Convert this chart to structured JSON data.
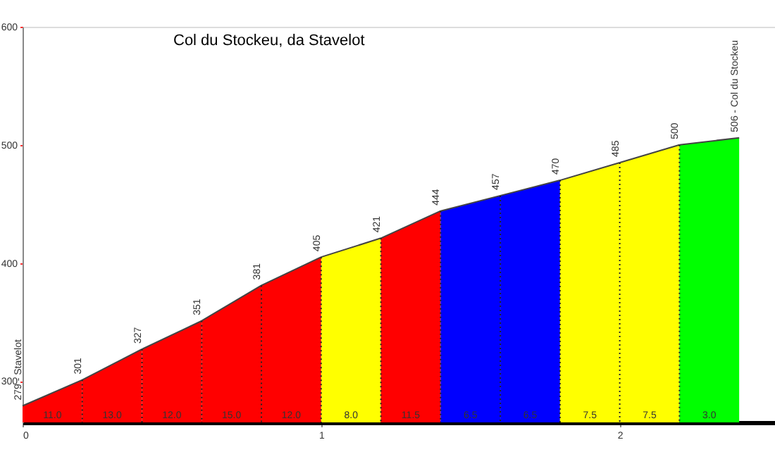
{
  "chart_data": {
    "type": "area",
    "title": "Col du Stockeu, da Stavelot",
    "series": [
      {
        "color": "#ff0000",
        "x": [
          0,
          0.2
        ],
        "values": [
          279,
          301
        ],
        "value_labels": [
          "279 - Stavelot",
          null
        ]
      },
      {
        "color": "#ff0000",
        "x": [
          0.2,
          0.4
        ],
        "values": [
          301,
          327
        ],
        "value_labels": [
          "301",
          null
        ]
      },
      {
        "color": "#ff0000",
        "x": [
          0.4,
          0.6
        ],
        "values": [
          327,
          351
        ],
        "value_labels": [
          "327",
          null
        ]
      },
      {
        "color": "#ff0000",
        "x": [
          0.6,
          0.8
        ],
        "values": [
          351,
          381
        ],
        "value_labels": [
          "351",
          null
        ]
      },
      {
        "color": "#ff0000",
        "x": [
          0.8,
          1.0
        ],
        "values": [
          381,
          405
        ],
        "value_labels": [
          "381",
          null
        ]
      },
      {
        "color": "#ffff00",
        "x": [
          1.0,
          1.2
        ],
        "values": [
          405,
          421
        ],
        "value_labels": [
          "405",
          null
        ]
      },
      {
        "color": "#ff0000",
        "x": [
          1.2,
          1.4
        ],
        "values": [
          421,
          444
        ],
        "value_labels": [
          "421",
          null
        ]
      },
      {
        "color": "#0000ff",
        "x": [
          1.4,
          1.6
        ],
        "values": [
          444,
          457
        ],
        "value_labels": [
          "444",
          null
        ]
      },
      {
        "color": "#0000ff",
        "x": [
          1.6,
          1.8
        ],
        "values": [
          457,
          470
        ],
        "value_labels": [
          "457",
          null
        ]
      },
      {
        "color": "#ffff00",
        "x": [
          1.8,
          2.0
        ],
        "values": [
          470,
          485
        ],
        "value_labels": [
          "470",
          null
        ]
      },
      {
        "color": "#ffff00",
        "x": [
          2.0,
          2.2
        ],
        "values": [
          485,
          500
        ],
        "value_labels": [
          "485",
          null
        ]
      },
      {
        "color": "#00ff00",
        "x": [
          2.2,
          2.4
        ],
        "values": [
          500,
          506
        ],
        "value_labels": [
          "500",
          "506 - Col du Stockeu"
        ]
      }
    ],
    "annotations": [
      "11.0",
      "13.0",
      "12.0",
      "15.0",
      "12.0",
      "8.0",
      "11.5",
      "6.5",
      "6.5",
      "7.5",
      "7.5",
      "3.0"
    ],
    "xlim": [
      0,
      2.52
    ],
    "xticks": [
      0,
      1,
      2
    ],
    "ylim": [
      265,
      600
    ],
    "yticks": [
      300,
      400,
      500,
      600
    ],
    "grid": false
  }
}
